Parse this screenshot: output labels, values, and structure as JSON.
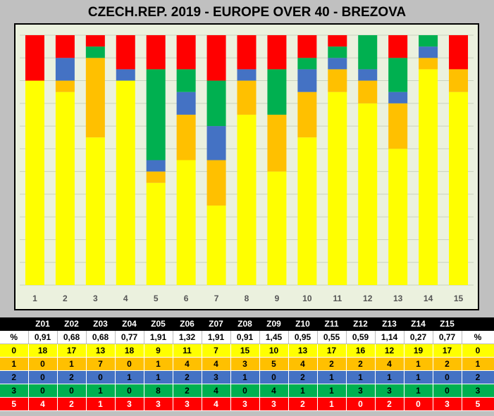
{
  "title": "CZECH.REP. 2019 - EUROPE OVER 40 - BREZOVA",
  "colors": {
    "level0": "#ffff00",
    "level1": "#ffc000",
    "level2": "#4472c4",
    "level3": "#00b050",
    "level5": "#ff0000",
    "plot_bg": "#ebf1de",
    "page_bg": "#c0c0c0"
  },
  "chart_data": {
    "type": "bar",
    "stacked": true,
    "categories": [
      "1",
      "2",
      "3",
      "4",
      "5",
      "6",
      "7",
      "8",
      "9",
      "10",
      "11",
      "12",
      "13",
      "14",
      "15"
    ],
    "series": [
      {
        "level": "0",
        "color": "#ffff00",
        "values": [
          18,
          17,
          13,
          18,
          9,
          11,
          7,
          15,
          10,
          13,
          17,
          16,
          12,
          19,
          17
        ]
      },
      {
        "level": "1",
        "color": "#ffc000",
        "values": [
          0,
          1,
          7,
          0,
          1,
          4,
          4,
          3,
          5,
          4,
          2,
          2,
          4,
          1,
          2
        ]
      },
      {
        "level": "2",
        "color": "#4472c4",
        "values": [
          0,
          2,
          0,
          1,
          1,
          2,
          3,
          1,
          0,
          2,
          1,
          1,
          1,
          1,
          0
        ]
      },
      {
        "level": "3",
        "color": "#00b050",
        "values": [
          0,
          0,
          1,
          0,
          8,
          2,
          4,
          0,
          4,
          1,
          1,
          3,
          3,
          1,
          0
        ]
      },
      {
        "level": "5",
        "color": "#ff0000",
        "values": [
          4,
          2,
          1,
          3,
          3,
          3,
          4,
          3,
          3,
          2,
          1,
          0,
          2,
          0,
          3
        ]
      }
    ],
    "ylim": [
      0,
      22
    ],
    "grid": true,
    "legend": "none"
  },
  "table": {
    "header": [
      "",
      "Z01",
      "Z02",
      "Z03",
      "Z04",
      "Z05",
      "Z06",
      "Z07",
      "Z08",
      "Z09",
      "Z10",
      "Z11",
      "Z12",
      "Z13",
      "Z14",
      "Z15",
      ""
    ],
    "rows": [
      {
        "cls": "pct",
        "cells": [
          "%",
          "0,91",
          "0,68",
          "0,68",
          "0,77",
          "1,91",
          "1,32",
          "1,91",
          "0,91",
          "1,45",
          "0,95",
          "0,55",
          "0,59",
          "1,14",
          "0,27",
          "0,77",
          "%"
        ]
      },
      {
        "cls": "r0",
        "cells": [
          "0",
          "18",
          "17",
          "13",
          "18",
          "9",
          "11",
          "7",
          "15",
          "10",
          "13",
          "17",
          "16",
          "12",
          "19",
          "17",
          "0"
        ]
      },
      {
        "cls": "r1",
        "cells": [
          "1",
          "0",
          "1",
          "7",
          "0",
          "1",
          "4",
          "4",
          "3",
          "5",
          "4",
          "2",
          "2",
          "4",
          "1",
          "2",
          "1"
        ]
      },
      {
        "cls": "r2",
        "cells": [
          "2",
          "0",
          "2",
          "0",
          "1",
          "1",
          "2",
          "3",
          "1",
          "0",
          "2",
          "1",
          "1",
          "1",
          "1",
          "0",
          "2"
        ]
      },
      {
        "cls": "r3",
        "cells": [
          "3",
          "0",
          "0",
          "1",
          "0",
          "8",
          "2",
          "4",
          "0",
          "4",
          "1",
          "1",
          "3",
          "3",
          "1",
          "0",
          "3"
        ]
      },
      {
        "cls": "r5",
        "cells": [
          "5",
          "4",
          "2",
          "1",
          "3",
          "3",
          "3",
          "4",
          "3",
          "3",
          "2",
          "1",
          "0",
          "2",
          "0",
          "3",
          "5"
        ]
      }
    ]
  }
}
